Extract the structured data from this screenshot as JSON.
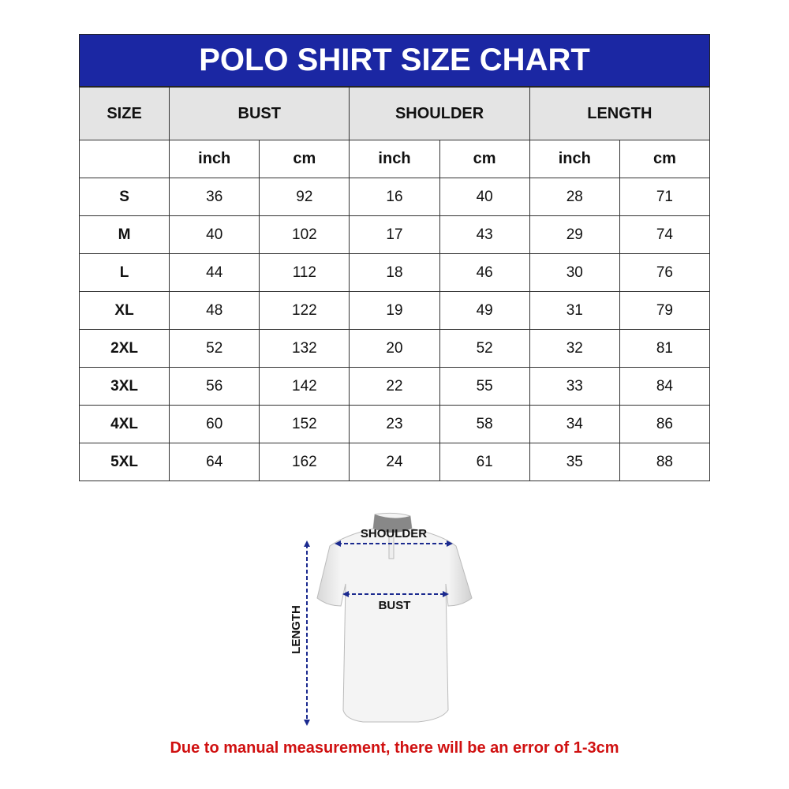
{
  "title": "POLO SHIRT SIZE CHART",
  "headers": {
    "size": "SIZE",
    "bust": "BUST",
    "shoulder": "SHOULDER",
    "length": "LENGTH"
  },
  "units": [
    "inch",
    "cm",
    "inch",
    "cm",
    "inch",
    "cm"
  ],
  "rows": [
    {
      "size": "S",
      "values": [
        "36",
        "92",
        "16",
        "40",
        "28",
        "71"
      ]
    },
    {
      "size": "M",
      "values": [
        "40",
        "102",
        "17",
        "43",
        "29",
        "74"
      ]
    },
    {
      "size": "L",
      "values": [
        "44",
        "112",
        "18",
        "46",
        "30",
        "76"
      ]
    },
    {
      "size": "XL",
      "values": [
        "48",
        "122",
        "19",
        "49",
        "31",
        "79"
      ]
    },
    {
      "size": "2XL",
      "values": [
        "52",
        "132",
        "20",
        "52",
        "32",
        "81"
      ]
    },
    {
      "size": "3XL",
      "values": [
        "56",
        "142",
        "22",
        "55",
        "33",
        "84"
      ]
    },
    {
      "size": "4XL",
      "values": [
        "60",
        "152",
        "23",
        "58",
        "34",
        "86"
      ]
    },
    {
      "size": "5XL",
      "values": [
        "64",
        "162",
        "24",
        "61",
        "35",
        "88"
      ]
    }
  ],
  "diagram": {
    "shoulder": "SHOULDER",
    "bust": "BUST",
    "length": "LENGTH"
  },
  "note": "Due to manual measurement, there will be an error of 1-3cm",
  "colors": {
    "title_bg": "#1b27a3",
    "header_bg": "#e4e4e4",
    "note": "#d01010",
    "arrows": "#1b2a8f"
  }
}
